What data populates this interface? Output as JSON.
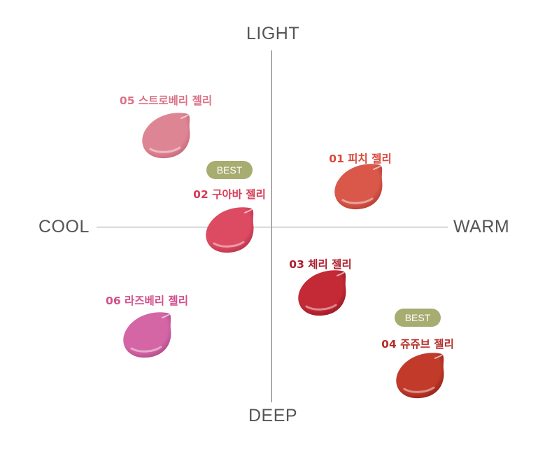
{
  "axes": {
    "top": "LIGHT",
    "bottom": "DEEP",
    "left": "COOL",
    "right": "WARM"
  },
  "badge_color": "#a7ad70",
  "products": [
    {
      "label": "01 피치 젤리",
      "best": null,
      "color": "#d8483c",
      "swatch": "#d9584a",
      "swatch_dark": "#b33a30"
    },
    {
      "label": "02 구아바 젤리",
      "best": "BEST",
      "color": "#d63c55",
      "swatch": "#dc4b62",
      "swatch_dark": "#b73048"
    },
    {
      "label": "03 체리 젤리",
      "best": null,
      "color": "#ae1f2f",
      "swatch": "#c32a35",
      "swatch_dark": "#951822"
    },
    {
      "label": "04 쥬쥬브 젤리",
      "best": "BEST",
      "color": "#b5302a",
      "swatch": "#c23a2a",
      "swatch_dark": "#921f18"
    },
    {
      "label": "05 스트로베리 젤리",
      "best": null,
      "color": "#db7287",
      "swatch": "#de8593",
      "swatch_dark": "#c5677a"
    },
    {
      "label": "06 라즈베리 젤리",
      "best": null,
      "color": "#d24f8c",
      "swatch": "#d466a6",
      "swatch_dark": "#b04888"
    }
  ]
}
